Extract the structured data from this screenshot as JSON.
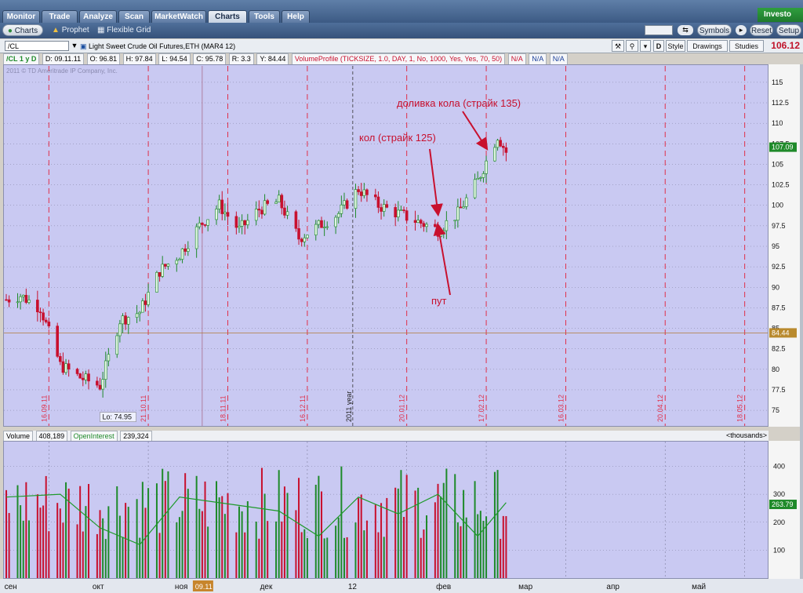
{
  "tabs": [
    {
      "label": "Monitor",
      "active": false
    },
    {
      "label": "Trade",
      "active": false
    },
    {
      "label": "Analyze",
      "active": false
    },
    {
      "label": "Scan",
      "active": false
    },
    {
      "label": "MarketWatch",
      "active": false
    },
    {
      "label": "Charts",
      "active": true
    },
    {
      "label": "Tools",
      "active": false
    },
    {
      "label": "Help",
      "active": false
    }
  ],
  "brand": "Investo",
  "subtabs": {
    "charts": "Charts",
    "prophet": "Prophet",
    "flexible": "Flexible Grid"
  },
  "toolbar": {
    "symbols": "Symbols",
    "reset": "Reset",
    "setup": "Setup"
  },
  "chart_header": {
    "symbol": "/CL",
    "description": "Light Sweet Crude Oil Futures,ETH (MAR4 12)",
    "d_label": "D",
    "style_label": "Style",
    "drawings_label": "Drawings",
    "studies_label": "Studies",
    "last_price": "106.12"
  },
  "info_bar": {
    "period": "/CL 1 y D",
    "date": "D: 09.11.11",
    "open": "O: 96.81",
    "high": "H: 97.84",
    "low": "L: 94.54",
    "close": "C: 95.78",
    "range": "R: 3.3",
    "y": "Y: 84.44",
    "study": "VolumeProfile (TICKSIZE, 1.0, DAY, 1, No, 1000, Yes, Yes, 70, 50)",
    "na": [
      "N/A",
      "N/A",
      "N/A"
    ]
  },
  "copyright": "2011 © TD Ameritrade IP Company, Inc.",
  "volume_header": {
    "volume_label": "Volume",
    "volume_value": "408,189",
    "oi_label": "OpenInterest",
    "oi_value": "239,324",
    "units": "<thousands>"
  },
  "colors": {
    "up": "#1e8a2a",
    "down": "#c8102e",
    "pane_bg": "#c9c9f2",
    "vline": "#e0304a",
    "oi_line": "#1e9a2a"
  },
  "chart_data": [
    {
      "type": "candlestick",
      "x": [
        "2011-09-01",
        "2011-09-06",
        "2011-09-13",
        "2011-09-20",
        "2011-09-27",
        "2011-10-04",
        "2011-10-11",
        "2011-10-18",
        "2011-10-25",
        "2011-11-01",
        "2011-11-08",
        "2011-11-15",
        "2011-11-22",
        "2011-11-29",
        "2011-12-06",
        "2011-12-13",
        "2011-12-20",
        "2011-12-27",
        "2012-01-03",
        "2012-01-10",
        "2012-01-17",
        "2012-01-24",
        "2012-01-31",
        "2012-02-07",
        "2012-02-14",
        "2012-02-21",
        "2012-02-24"
      ],
      "close": [
        88.5,
        89.0,
        87.5,
        80.5,
        79.0,
        78.0,
        86.0,
        87.0,
        92.0,
        94.0,
        97.5,
        100.0,
        97.0,
        99.5,
        100.5,
        96.0,
        97.5,
        99.0,
        102.0,
        100.0,
        99.0,
        98.0,
        97.0,
        99.0,
        103.0,
        108.5,
        106.5
      ],
      "ylim": [
        73,
        117
      ],
      "yticks": [
        75,
        77.5,
        80,
        82.5,
        85,
        87.5,
        90,
        92.5,
        95,
        97.5,
        100,
        102.5,
        105,
        107.5,
        110,
        112.5,
        115
      ],
      "last_tag": "107.09",
      "crosshair_tag": "84.44",
      "crosshair_y": 84.44,
      "low_label": "Lo: 74.95",
      "low_value": 74.95,
      "low_date": "2011-10-04",
      "date_labels": [
        "16.09.11",
        "21.10.11",
        "18.11.11",
        "16.12.11",
        "20.01.12",
        "17.02.12",
        "16.03.12",
        "20.04.12",
        "18.05.12"
      ],
      "year_label": "2011 year",
      "annotations": [
        {
          "text": "доливка кола (страйк 135)",
          "target_date": "2012-02-17",
          "target_value": 107
        },
        {
          "text": "кол (страйк 125)",
          "target_date": "2012-01-31",
          "target_value": 99
        },
        {
          "text": "пут",
          "target_date": "2012-01-31",
          "target_value": 97.5
        }
      ]
    },
    {
      "type": "bar",
      "title": "Volume",
      "ylim": [
        0,
        480
      ],
      "yticks": [
        100,
        200,
        300,
        400
      ],
      "last_tag": "263.79",
      "oi_series": [
        {
          "x": "2011-09-01",
          "y": 290
        },
        {
          "x": "2011-09-20",
          "y": 300
        },
        {
          "x": "2011-10-04",
          "y": 180
        },
        {
          "x": "2011-10-18",
          "y": 120
        },
        {
          "x": "2011-11-01",
          "y": 290
        },
        {
          "x": "2011-11-22",
          "y": 260
        },
        {
          "x": "2011-12-06",
          "y": 240
        },
        {
          "x": "2011-12-20",
          "y": 150
        },
        {
          "x": "2012-01-03",
          "y": 290
        },
        {
          "x": "2012-01-17",
          "y": 230
        },
        {
          "x": "2012-01-31",
          "y": 300
        },
        {
          "x": "2012-02-14",
          "y": 150
        },
        {
          "x": "2012-02-24",
          "y": 270
        }
      ]
    }
  ],
  "time_axis": {
    "months": [
      "сен",
      "окт",
      "ноя",
      "дек",
      "12",
      "фев",
      "мар",
      "апр",
      "май"
    ],
    "selected_label": "09.11"
  }
}
